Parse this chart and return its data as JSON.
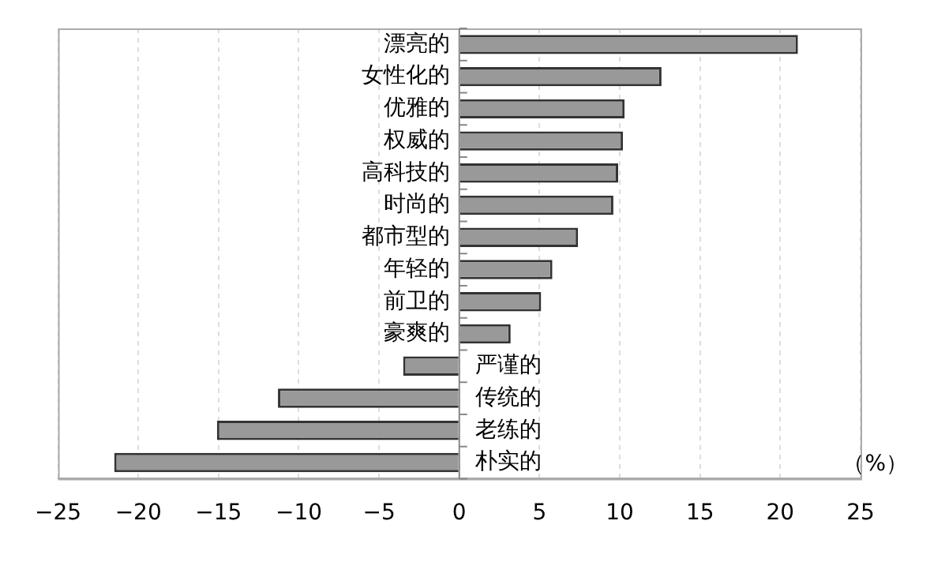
{
  "chart_data": {
    "type": "bar",
    "orientation": "horizontal",
    "xlabel": "（%）",
    "categories": [
      "漂亮的",
      "女性化的",
      "优雅的",
      "权威的",
      "高科技的",
      "时尚的",
      "都市型的",
      "年轻的",
      "前卫的",
      "豪爽的",
      "严谨的",
      "传统的",
      "老练的",
      "朴实的"
    ],
    "values": [
      21.1,
      12.6,
      10.3,
      10.2,
      9.9,
      9.6,
      7.4,
      5.8,
      5.1,
      3.2,
      -3.5,
      -11.3,
      -15.1,
      -21.5
    ],
    "color": "#999999",
    "xlim": [
      -25,
      25
    ],
    "xticks": [
      -25,
      -20,
      -15,
      -10,
      -5,
      0,
      5,
      10,
      15,
      20,
      25
    ],
    "grid": "x",
    "legend": false
  }
}
